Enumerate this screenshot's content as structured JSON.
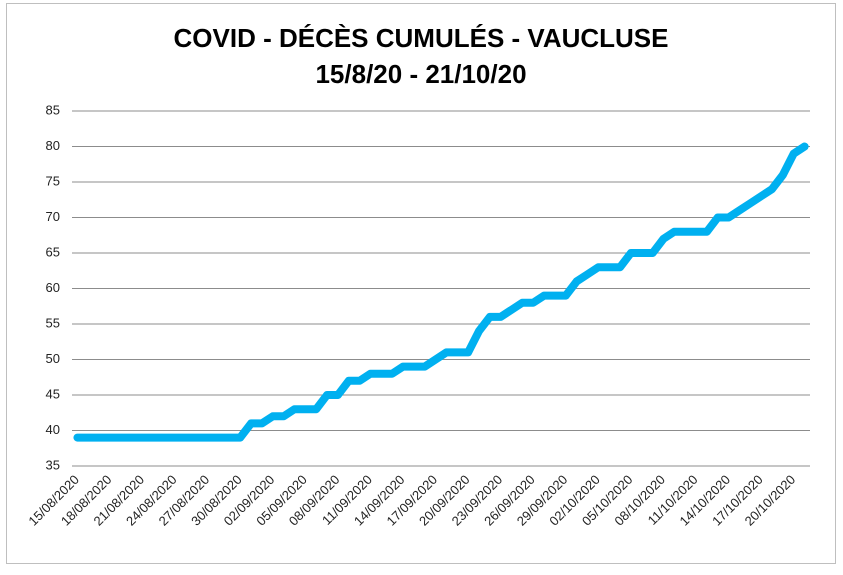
{
  "chart_data": {
    "type": "line",
    "title": "COVID - DÉCÈS CUMULÉS - VAUCLUSE",
    "subtitle": "15/8/20 - 21/10/20",
    "categories": [
      "15/08/2020",
      null,
      null,
      "18/08/2020",
      null,
      null,
      "21/08/2020",
      null,
      null,
      "24/08/2020",
      null,
      null,
      "27/08/2020",
      null,
      null,
      "30/08/2020",
      null,
      null,
      "02/09/2020",
      null,
      null,
      "05/09/2020",
      null,
      null,
      "08/09/2020",
      null,
      null,
      "11/09/2020",
      null,
      null,
      "14/09/2020",
      null,
      null,
      "17/09/2020",
      null,
      null,
      "20/09/2020",
      null,
      null,
      "23/09/2020",
      null,
      null,
      "26/09/2020",
      null,
      null,
      "29/09/2020",
      null,
      null,
      "02/10/2020",
      null,
      null,
      "05/10/2020",
      null,
      null,
      "08/10/2020",
      null,
      null,
      "11/10/2020",
      null,
      null,
      "14/10/2020",
      null,
      null,
      "17/10/2020",
      null,
      null,
      "20/10/2020",
      null
    ],
    "values": [
      39,
      39,
      39,
      39,
      39,
      39,
      39,
      39,
      39,
      39,
      39,
      39,
      39,
      39,
      39,
      39,
      41,
      41,
      42,
      42,
      43,
      43,
      43,
      45,
      45,
      47,
      47,
      48,
      48,
      48,
      49,
      49,
      49,
      50,
      51,
      51,
      51,
      54,
      56,
      56,
      57,
      58,
      58,
      59,
      59,
      59,
      61,
      62,
      63,
      63,
      63,
      65,
      65,
      65,
      67,
      68,
      68,
      68,
      68,
      70,
      70,
      71,
      72,
      73,
      74,
      76,
      79,
      80
    ],
    "color": "#00b0f0",
    "ylim": [
      35,
      85
    ],
    "yticks": [
      35,
      40,
      45,
      50,
      55,
      60,
      65,
      70,
      75,
      80,
      85
    ],
    "grid": true
  }
}
